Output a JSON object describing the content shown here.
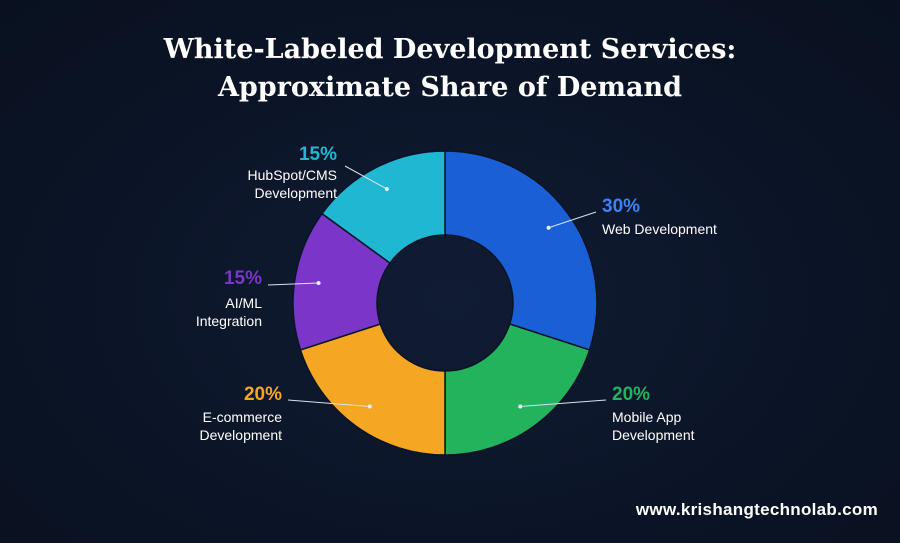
{
  "title_line1": "White-Labeled Development Services:",
  "title_line2": "Approximate Share of Demand",
  "footer": "www.krishangtechnolab.com",
  "chart_data": {
    "type": "pie",
    "donut": true,
    "title": "White-Labeled Development Services: Approximate Share of Demand",
    "unit": "%",
    "slices": [
      {
        "label_lines": [
          "Web Development"
        ],
        "value": 30,
        "value_label": "30%",
        "color": "#1a5fd6"
      },
      {
        "label_lines": [
          "Mobile App",
          "Development"
        ],
        "value": 20,
        "value_label": "20%",
        "color": "#23b35c"
      },
      {
        "label_lines": [
          "E-commerce",
          "Development"
        ],
        "value": 20,
        "value_label": "20%",
        "color": "#f5a623"
      },
      {
        "label_lines": [
          "AI/ML",
          "Integration"
        ],
        "value": 15,
        "value_label": "15%",
        "color": "#7a35c9"
      },
      {
        "label_lines": [
          "HubSpot/CMS",
          "Development"
        ],
        "value": 15,
        "value_label": "15%",
        "color": "#1fb7d2"
      }
    ]
  }
}
